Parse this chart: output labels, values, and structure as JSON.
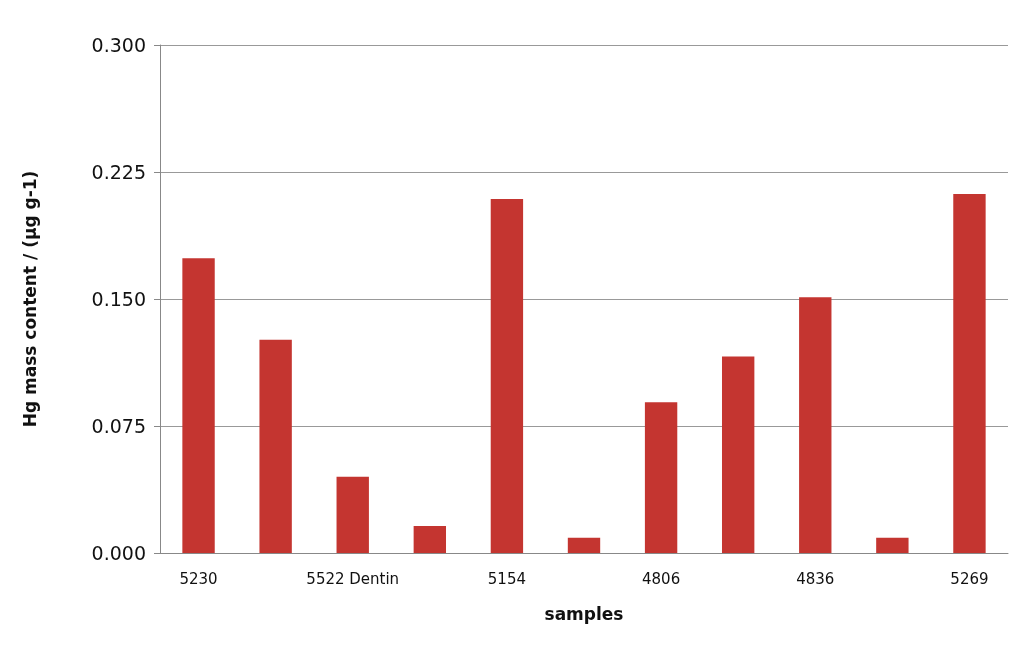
{
  "chart_data": {
    "type": "bar",
    "xlabel": "samples",
    "ylabel": "Hg mass content / (µg g-1)",
    "categories": [
      "5230",
      null,
      "5522 Dentin",
      null,
      "5154",
      null,
      "4806",
      null,
      "4836",
      null,
      "5269"
    ],
    "values": [
      0.174,
      0.126,
      0.045,
      0.016,
      0.209,
      0.009,
      0.089,
      0.116,
      0.151,
      0.009,
      0.212
    ],
    "color": "#c43530",
    "ylim": [
      0,
      0.3
    ],
    "yticks": [
      {
        "value": 0,
        "label": "0.000"
      },
      {
        "value": 0.075,
        "label": "0.075"
      },
      {
        "value": 0.15,
        "label": "0.150"
      },
      {
        "value": 0.225,
        "label": "0.225"
      },
      {
        "value": 0.3,
        "label": "0.300"
      }
    ],
    "grid": "y"
  }
}
